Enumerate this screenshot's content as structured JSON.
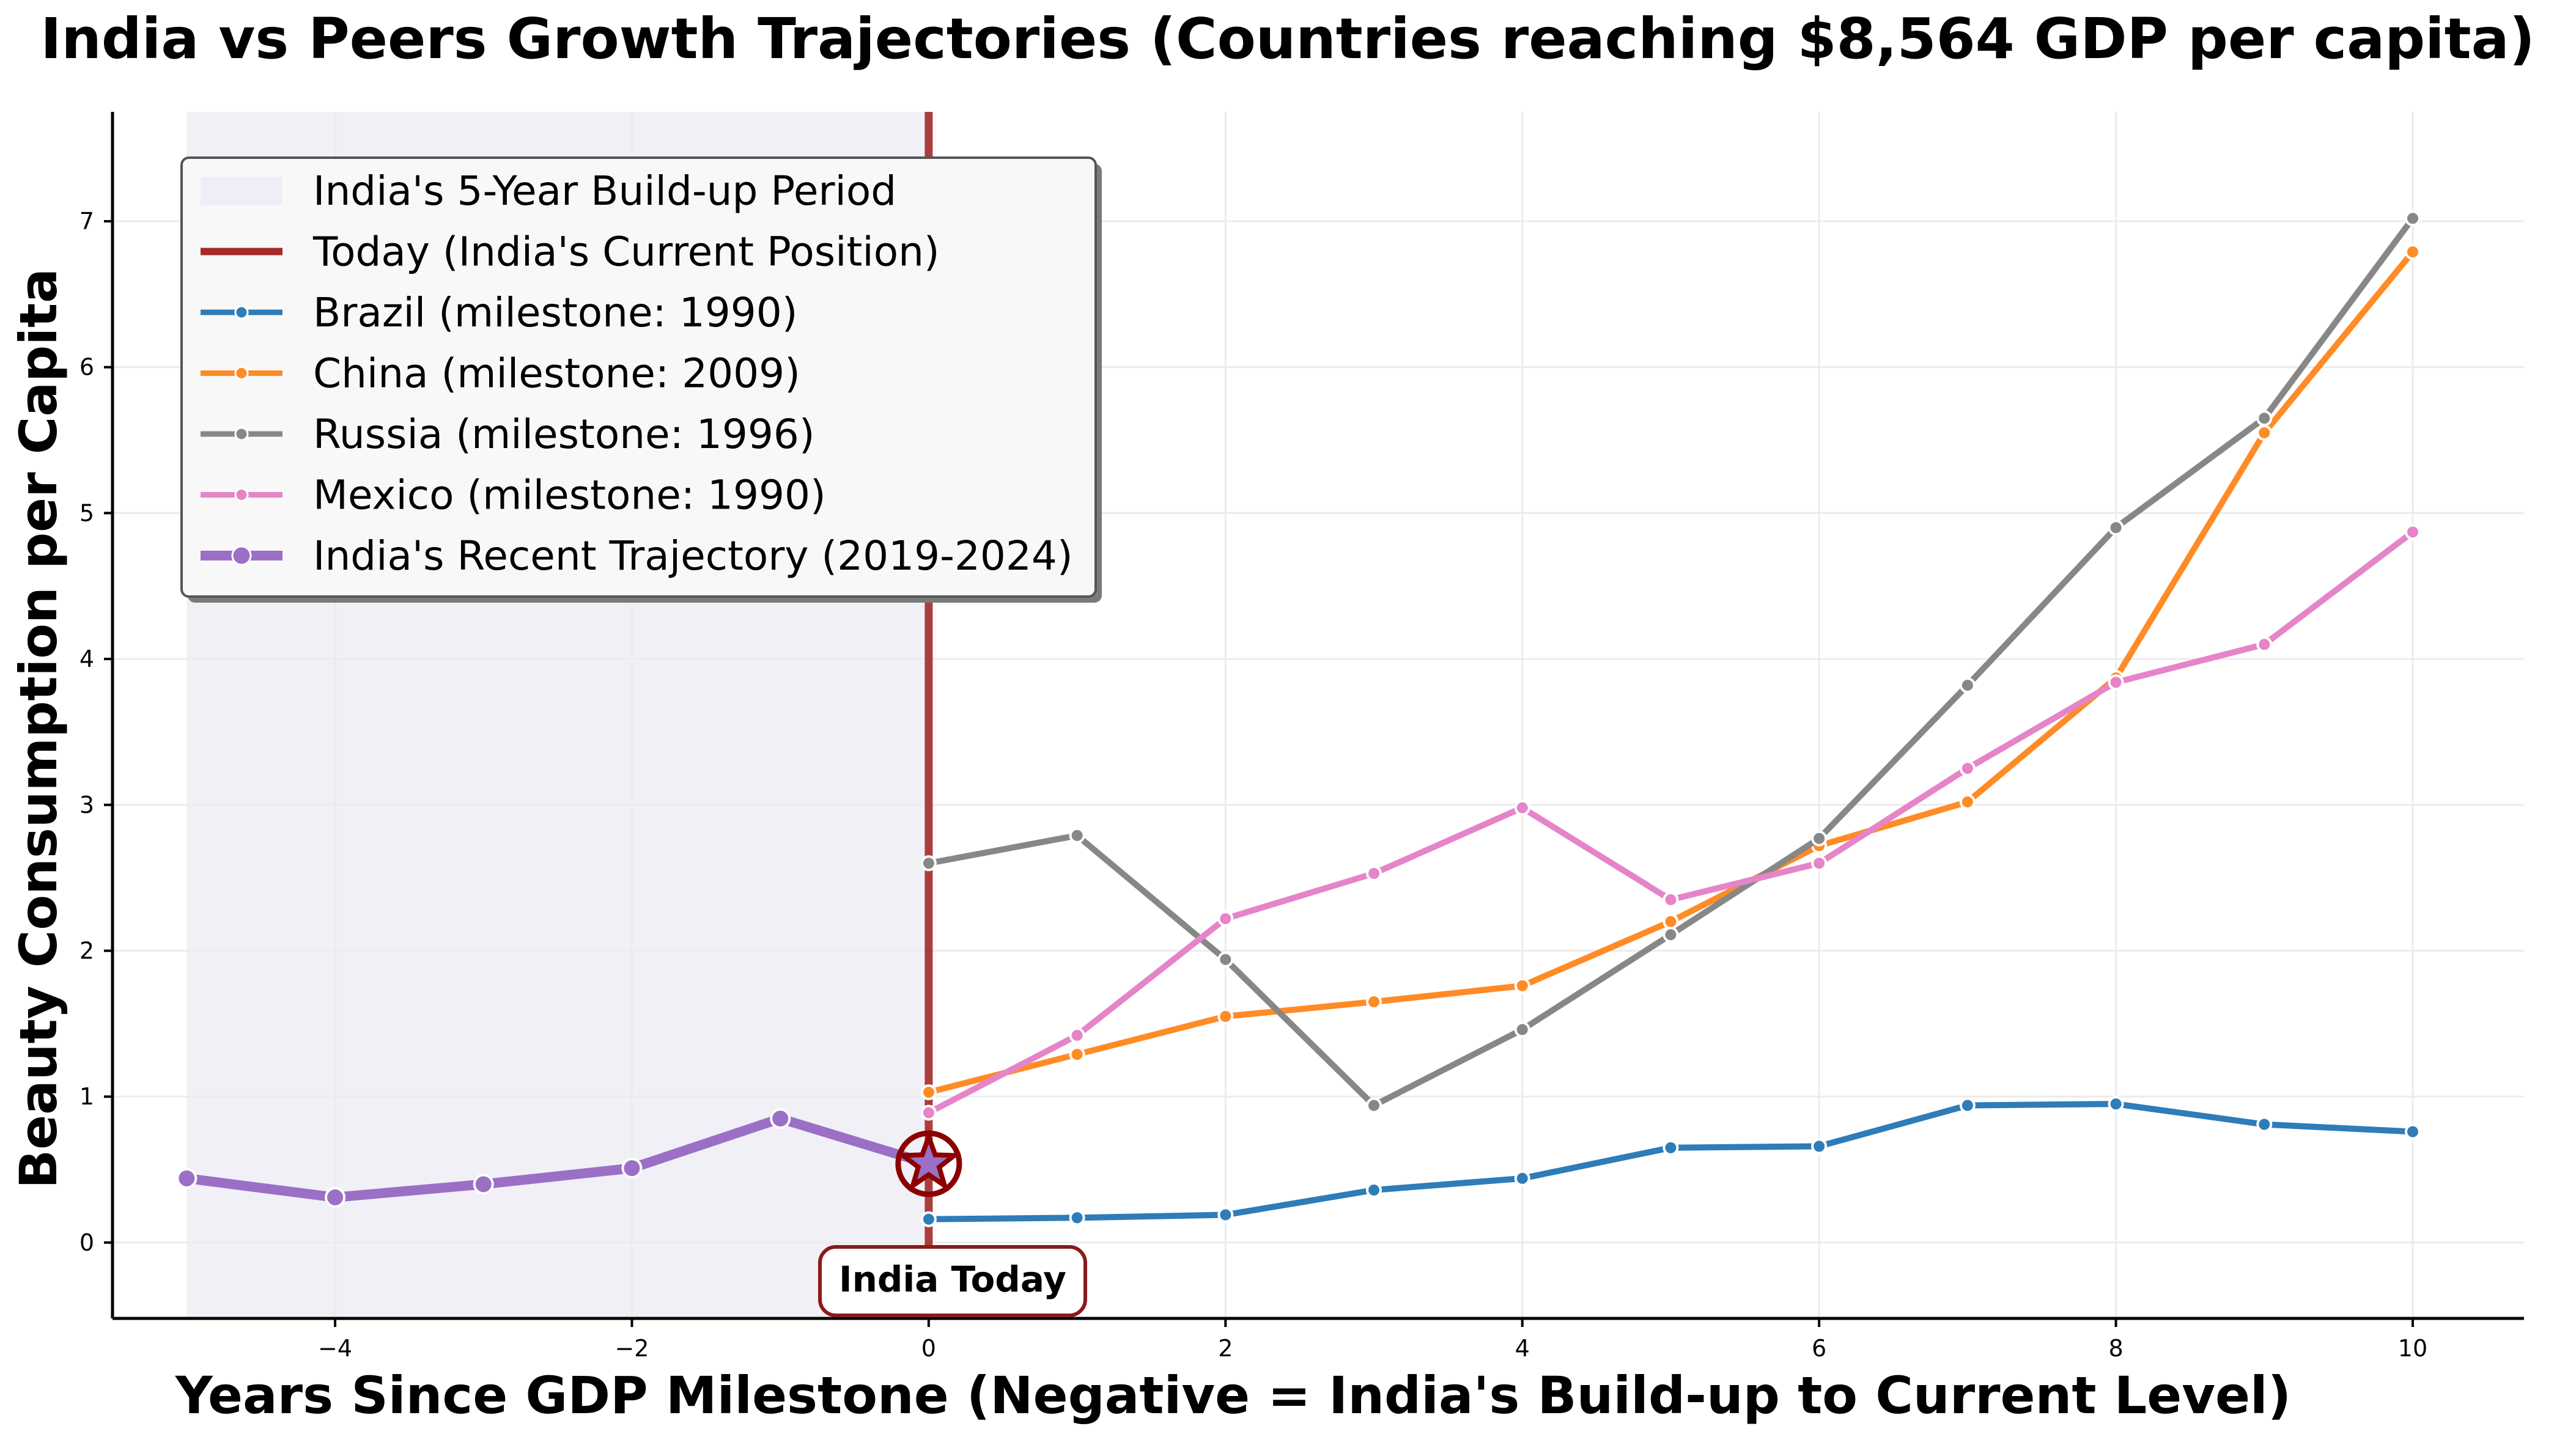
{
  "chart_data": {
    "type": "line",
    "title": "India vs Peers Growth Trajectories (Countries reaching $8,564 GDP per capita)",
    "xlabel": "Years Since GDP Milestone (Negative = India's Build-up to Current Level)",
    "ylabel": "Beauty Consumption per Capita",
    "xlim": [
      -5.5,
      10.75
    ],
    "ylim": [
      -0.52,
      7.75
    ],
    "x_ticks": [
      -4,
      -2,
      0,
      2,
      4,
      6,
      8,
      10
    ],
    "x_tick_labels": [
      "−4",
      "−2",
      "0",
      "2",
      "4",
      "6",
      "8",
      "10"
    ],
    "y_ticks": [
      0,
      1,
      2,
      3,
      4,
      5,
      6,
      7
    ],
    "y_tick_labels": [
      "0",
      "1",
      "2",
      "3",
      "4",
      "5",
      "6",
      "7"
    ],
    "grid": true,
    "legend_position": "upper-left",
    "shaded_region": {
      "label": "India's 5-Year Build-up Period",
      "x_range": [
        -5,
        0
      ],
      "color": "#efedf5"
    },
    "reference_line": {
      "label": "Today (India's Current Position)",
      "x": 0,
      "color": "#a52a2a"
    },
    "series": [
      {
        "name": "Brazil (milestone: 1990)",
        "color": "#2e7cb8",
        "x": [
          0,
          1,
          2,
          3,
          4,
          5,
          6,
          7,
          8,
          9,
          10
        ],
        "y": [
          0.16,
          0.17,
          0.19,
          0.36,
          0.44,
          0.65,
          0.66,
          0.94,
          0.95,
          0.81,
          0.76
        ]
      },
      {
        "name": "China (milestone: 2009)",
        "color": "#ff8b26",
        "x": [
          0,
          1,
          2,
          3,
          4,
          5,
          6,
          7,
          8,
          9,
          10
        ],
        "y": [
          1.03,
          1.29,
          1.55,
          1.65,
          1.76,
          2.2,
          2.72,
          3.02,
          3.87,
          5.55,
          6.79
        ]
      },
      {
        "name": "Russia (milestone: 1996)",
        "color": "#878787",
        "x": [
          0,
          1,
          2,
          3,
          4,
          5,
          6,
          7,
          8,
          9,
          10
        ],
        "y": [
          2.6,
          2.79,
          1.94,
          0.94,
          1.46,
          2.11,
          2.77,
          3.82,
          4.9,
          5.65,
          7.02
        ]
      },
      {
        "name": "Mexico (milestone: 1990)",
        "color": "#e584c9",
        "x": [
          0,
          1,
          2,
          3,
          4,
          5,
          6,
          7,
          8,
          9,
          10
        ],
        "y": [
          0.89,
          1.42,
          2.22,
          2.53,
          2.98,
          2.35,
          2.6,
          3.25,
          3.84,
          4.1,
          4.87
        ]
      },
      {
        "name": "India's Recent Trajectory (2019-2024)",
        "color": "#9b6fc6",
        "x": [
          -5,
          -4,
          -3,
          -2,
          -1,
          0
        ],
        "y": [
          0.44,
          0.31,
          0.4,
          0.51,
          0.85,
          0.54
        ]
      }
    ],
    "today_marker": {
      "x": 0,
      "y": 0.54
    },
    "annotation": {
      "text": "India Today"
    }
  },
  "colors": {
    "reference_line": "#a52a2a",
    "marker_edge": "#8b0000",
    "annotation_border": "#8b1a1a",
    "grid": "#ececec",
    "star_fill": "#9b6fc6"
  }
}
